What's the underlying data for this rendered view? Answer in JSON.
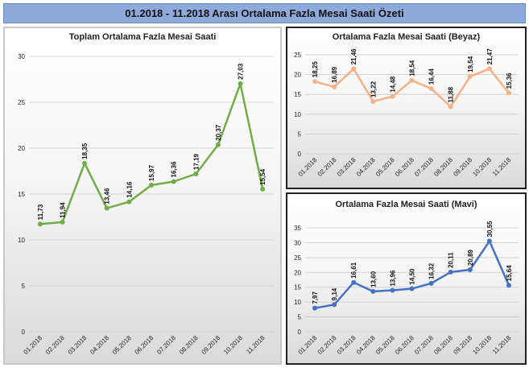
{
  "banner": {
    "title": "01.2018 - 11.2018 Arası Ortalama Fazla Mesai Saati Özeti"
  },
  "chart_data": [
    {
      "type": "line",
      "title": "Toplam Ortalama Fazla Mesai Saati",
      "categories": [
        "01.2018",
        "02.2018",
        "03.2018",
        "04.2018",
        "05.2018",
        "06.2018",
        "07.2018",
        "08.2018",
        "09.2018",
        "10.2018",
        "11.2018"
      ],
      "series": [
        {
          "values": [
            11.73,
            11.94,
            18.35,
            13.46,
            14.16,
            15.97,
            16.36,
            17.19,
            20.37,
            27.03,
            15.54
          ]
        }
      ],
      "data_labels": [
        "11,73",
        "11,94",
        "18,35",
        "13,46",
        "14,16",
        "15,97",
        "16,36",
        "17,19",
        "20,37",
        "27,03",
        "15,54"
      ],
      "y_ticks": [
        "0",
        "5",
        "10",
        "15",
        "20",
        "25",
        "30"
      ],
      "ylim": [
        0,
        30
      ],
      "color": "#70ad47",
      "grid": true
    },
    {
      "type": "line",
      "title": "Ortalama Fazla Mesai Saati (Beyaz)",
      "categories": [
        "01.2018",
        "02.2018",
        "03.2018",
        "04.2018",
        "05.2018",
        "06.2018",
        "07.2018",
        "08.2018",
        "09.2018",
        "10.2018",
        "11.2018"
      ],
      "series": [
        {
          "values": [
            18.25,
            16.89,
            21.46,
            13.22,
            14.48,
            18.54,
            16.44,
            11.88,
            19.54,
            21.47,
            15.36
          ]
        }
      ],
      "data_labels": [
        "18,25",
        "16,89",
        "21,46",
        "13,22",
        "14,48",
        "18,54",
        "16,44",
        "11,88",
        "19,54",
        "21,47",
        "15,36"
      ],
      "y_ticks": [
        "0",
        "5",
        "10",
        "15",
        "20",
        "25"
      ],
      "ylim": [
        0,
        25
      ],
      "color": "#f4b183",
      "grid": true
    },
    {
      "type": "line",
      "title": "Ortalama Fazla Mesai Saati (Mavi)",
      "categories": [
        "01.2018",
        "02.2018",
        "03.2018",
        "04.2018",
        "05.2018",
        "06.2018",
        "07.2018",
        "08.2018",
        "09.2018",
        "10.2018",
        "11.2018"
      ],
      "series": [
        {
          "values": [
            7.97,
            9.14,
            16.61,
            13.6,
            13.96,
            14.5,
            16.32,
            20.11,
            20.89,
            30.55,
            15.64
          ]
        }
      ],
      "data_labels": [
        "7,97",
        "9,14",
        "16,61",
        "13,60",
        "13,96",
        "14,50",
        "16,32",
        "20,11",
        "20,89",
        "30,55",
        "15,64"
      ],
      "y_ticks": [
        "0",
        "5",
        "10",
        "15",
        "20",
        "25",
        "30",
        "35"
      ],
      "ylim": [
        0,
        35
      ],
      "color": "#4472c4",
      "grid": true
    }
  ]
}
